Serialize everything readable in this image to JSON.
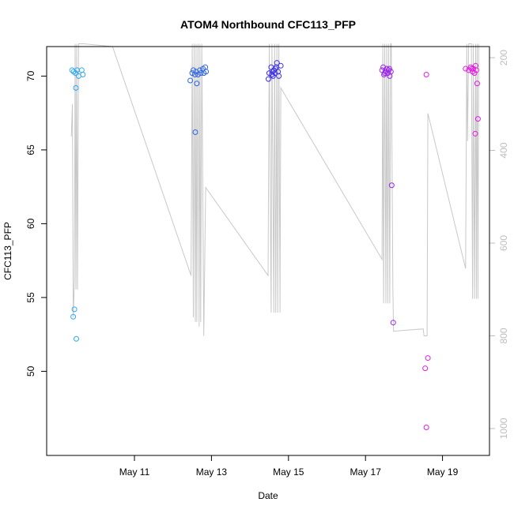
{
  "chart_data": {
    "type": "scatter",
    "title": "ATOM4 Northbound CFC113_PFP",
    "xlabel": "Date",
    "ylabel": "CFC113_PFP",
    "x_ticks": [
      "May 11",
      "May 13",
      "May 15",
      "May 17",
      "May 19"
    ],
    "x_tick_days": [
      11,
      13,
      15,
      17,
      19
    ],
    "xlim_days": [
      8.72,
      20.22
    ],
    "ylim": [
      44.3,
      72.0
    ],
    "y_ticks": [
      50,
      55,
      60,
      65,
      70
    ],
    "y2_ticks": [
      200,
      400,
      600,
      800,
      1000
    ],
    "y2lim": [
      1058,
      176
    ],
    "grid": false,
    "point_series": [
      {
        "color": "#2fa7f0",
        "points": [
          [
            9.38,
            70.4
          ],
          [
            9.42,
            70.3
          ],
          [
            9.47,
            70.2
          ],
          [
            9.51,
            70.4
          ],
          [
            9.55,
            70.0
          ],
          [
            9.63,
            70.4
          ],
          [
            9.66,
            70.1
          ],
          [
            9.44,
            54.2
          ],
          [
            9.41,
            53.7
          ],
          [
            9.48,
            69.2
          ],
          [
            9.49,
            52.2
          ]
        ]
      },
      {
        "color": "#2d64e6",
        "points": [
          [
            12.45,
            69.7
          ],
          [
            12.5,
            70.2
          ],
          [
            12.53,
            70.4
          ],
          [
            12.57,
            70.1
          ],
          [
            12.6,
            70.3
          ],
          [
            12.62,
            69.5
          ],
          [
            12.65,
            70.1
          ],
          [
            12.7,
            70.4
          ],
          [
            12.72,
            70.2
          ],
          [
            12.78,
            70.5
          ],
          [
            12.8,
            70.2
          ],
          [
            12.84,
            70.6
          ],
          [
            12.86,
            70.3
          ],
          [
            12.58,
            66.2
          ]
        ]
      },
      {
        "color": "#3a2ee8",
        "points": [
          [
            14.48,
            69.8
          ],
          [
            14.5,
            70.2
          ],
          [
            14.55,
            70.6
          ],
          [
            14.58,
            70.3
          ],
          [
            14.6,
            70.0
          ],
          [
            14.62,
            70.4
          ],
          [
            14.65,
            70.2
          ],
          [
            14.68,
            70.6
          ],
          [
            14.7,
            70.9
          ],
          [
            14.73,
            70.3
          ],
          [
            14.75,
            70.0
          ],
          [
            14.8,
            70.7
          ],
          [
            14.57,
            70.1
          ],
          [
            14.66,
            70.5
          ]
        ]
      },
      {
        "color": "#9a24e8",
        "points": [
          [
            17.43,
            70.4
          ],
          [
            17.46,
            70.6
          ],
          [
            17.48,
            70.1
          ],
          [
            17.52,
            70.3
          ],
          [
            17.55,
            70.5
          ],
          [
            17.58,
            70.2
          ],
          [
            17.6,
            70.4
          ],
          [
            17.63,
            70.0
          ],
          [
            17.66,
            70.3
          ],
          [
            17.68,
            62.6
          ],
          [
            17.72,
            53.3
          ],
          [
            17.5,
            70.2
          ],
          [
            17.62,
            70.5
          ]
        ]
      },
      {
        "color": "#e21ce0",
        "points": [
          [
            18.58,
            70.1
          ],
          [
            18.55,
            50.2
          ],
          [
            18.62,
            50.9
          ],
          [
            18.58,
            46.2
          ],
          [
            19.6,
            70.5
          ],
          [
            19.68,
            70.4
          ],
          [
            19.73,
            70.6
          ],
          [
            19.78,
            70.3
          ],
          [
            19.8,
            70.5
          ],
          [
            19.83,
            70.2
          ],
          [
            19.86,
            70.7
          ],
          [
            19.88,
            70.4
          ],
          [
            19.9,
            69.5
          ],
          [
            19.92,
            67.1
          ],
          [
            19.85,
            66.1
          ],
          [
            19.75,
            70.5
          ]
        ]
      }
    ],
    "altitude_line_color": "#c8c8c8",
    "altitude_line": [
      [
        9.36,
        370
      ],
      [
        9.39,
        300
      ],
      [
        9.41,
        760
      ],
      [
        9.44,
        680
      ],
      [
        9.46,
        170
      ],
      [
        9.48,
        700
      ],
      [
        9.5,
        170
      ],
      [
        9.52,
        700
      ],
      [
        9.55,
        170
      ],
      [
        9.63,
        170
      ],
      [
        9.68,
        170
      ],
      [
        10.43,
        176
      ],
      [
        12.47,
        670
      ],
      [
        12.5,
        170
      ],
      [
        12.53,
        760
      ],
      [
        12.55,
        170
      ],
      [
        12.58,
        770
      ],
      [
        12.6,
        170
      ],
      [
        12.62,
        770
      ],
      [
        12.65,
        170
      ],
      [
        12.68,
        780
      ],
      [
        12.7,
        170
      ],
      [
        12.72,
        770
      ],
      [
        12.75,
        170
      ],
      [
        12.8,
        800
      ],
      [
        12.85,
        480
      ],
      [
        14.47,
        670
      ],
      [
        14.5,
        170
      ],
      [
        14.55,
        750
      ],
      [
        14.57,
        170
      ],
      [
        14.62,
        750
      ],
      [
        14.64,
        170
      ],
      [
        14.67,
        750
      ],
      [
        14.7,
        170
      ],
      [
        14.72,
        750
      ],
      [
        14.75,
        170
      ],
      [
        14.78,
        750
      ],
      [
        14.8,
        265
      ],
      [
        17.43,
        635
      ],
      [
        17.45,
        170
      ],
      [
        17.47,
        730
      ],
      [
        17.5,
        170
      ],
      [
        17.53,
        730
      ],
      [
        17.55,
        170
      ],
      [
        17.58,
        730
      ],
      [
        17.6,
        170
      ],
      [
        17.63,
        730
      ],
      [
        17.65,
        170
      ],
      [
        17.67,
        170
      ],
      [
        17.71,
        695
      ],
      [
        17.73,
        790
      ],
      [
        18.5,
        785
      ],
      [
        18.52,
        800
      ],
      [
        18.6,
        800
      ],
      [
        18.62,
        320
      ],
      [
        19.6,
        655
      ],
      [
        19.63,
        170
      ],
      [
        19.65,
        380
      ],
      [
        19.68,
        170
      ],
      [
        19.72,
        170
      ],
      [
        19.75,
        170
      ],
      [
        19.78,
        720
      ],
      [
        19.8,
        170
      ],
      [
        19.83,
        720
      ],
      [
        19.86,
        170
      ],
      [
        19.88,
        720
      ],
      [
        19.9,
        170
      ],
      [
        19.92,
        720
      ],
      [
        19.94,
        170
      ]
    ]
  }
}
